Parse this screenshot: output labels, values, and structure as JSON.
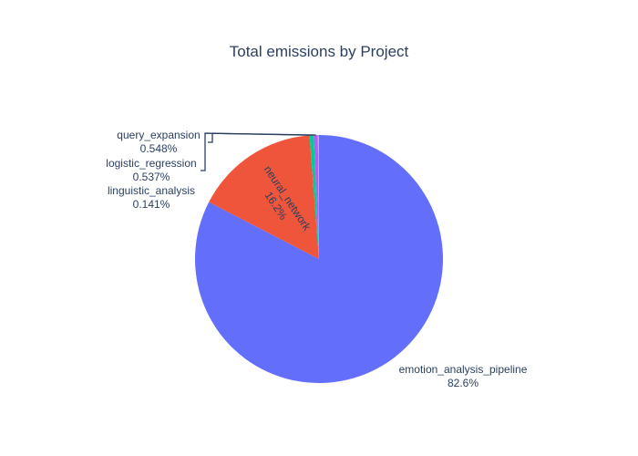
{
  "chart_data": {
    "type": "pie",
    "title": "Total emissions by Project",
    "slices": [
      {
        "label": "emotion_analysis_pipeline",
        "value": 82.6,
        "text": "82.6%",
        "color": "#636efa"
      },
      {
        "label": "neural_network",
        "value": 16.2,
        "text": "16.2%",
        "color": "#EF553B"
      },
      {
        "label": "query_expansion",
        "value": 0.548,
        "text": "0.548%",
        "color": "#00cc96"
      },
      {
        "label": "logistic_regression",
        "value": 0.537,
        "text": "0.537%",
        "color": "#ab63fa"
      },
      {
        "label": "linguistic_analysis",
        "value": 0.141,
        "text": "0.141%",
        "color": "#FFA15A"
      }
    ],
    "direction": "clockwise",
    "start_angle_deg": 0
  }
}
